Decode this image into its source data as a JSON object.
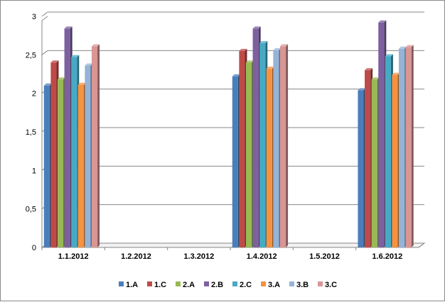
{
  "chart_data": {
    "type": "bar",
    "title": "",
    "xlabel": "",
    "ylabel": "",
    "ylim": [
      0,
      3
    ],
    "yticks": [
      "0",
      "0,5",
      "1",
      "1,5",
      "2",
      "2,5",
      "3"
    ],
    "categories": [
      "1.1.2012",
      "1.2.2012",
      "1.3.2012",
      "1.4.2012",
      "1.5.2012",
      "1.6.2012"
    ],
    "grid": true,
    "legend_position": "bottom",
    "series": [
      {
        "name": "1.A",
        "color": "#4a7ebb",
        "values": [
          2.1,
          null,
          null,
          2.22,
          null,
          2.04
        ]
      },
      {
        "name": "1.C",
        "color": "#be4b48",
        "values": [
          2.4,
          null,
          null,
          2.55,
          null,
          2.3
        ]
      },
      {
        "name": "2.A",
        "color": "#98b954",
        "values": [
          2.18,
          null,
          null,
          2.4,
          null,
          2.18
        ]
      },
      {
        "name": "2.B",
        "color": "#7d60a0",
        "values": [
          2.84,
          null,
          null,
          2.84,
          null,
          2.92
        ]
      },
      {
        "name": "2.C",
        "color": "#46aac5",
        "values": [
          2.47,
          null,
          null,
          2.65,
          null,
          2.48
        ]
      },
      {
        "name": "3.A",
        "color": "#f69240",
        "values": [
          2.11,
          null,
          null,
          2.32,
          null,
          2.24
        ]
      },
      {
        "name": "3.B",
        "color": "#95b3d7",
        "values": [
          2.36,
          null,
          null,
          2.56,
          null,
          2.58
        ]
      },
      {
        "name": "3.C",
        "color": "#d99694",
        "values": [
          2.61,
          null,
          null,
          2.61,
          null,
          2.6
        ]
      }
    ]
  }
}
